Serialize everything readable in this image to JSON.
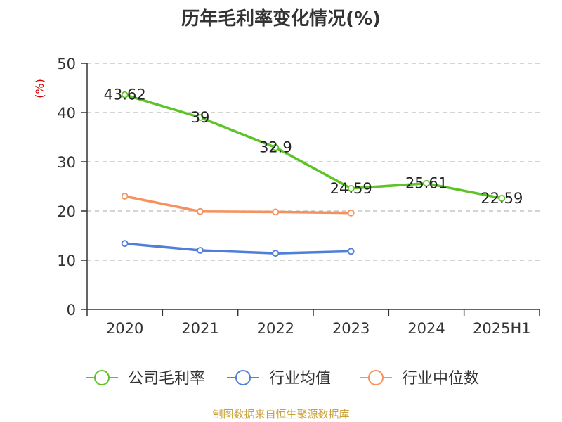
{
  "title": "历年毛利率变化情况(%)",
  "source_note": "制图数据来自恒生聚源数据库",
  "colors": {
    "company": "#5ec229",
    "industry_avg": "#4f7fd8",
    "industry_median": "#f5915c",
    "axis": "#333333",
    "grid": "#bbbbbb",
    "unit_label": "#d40000"
  },
  "chart_data": {
    "type": "line",
    "title": "历年毛利率变化情况(%)",
    "ylabel": "(%)",
    "ylim": [
      0,
      50
    ],
    "yticks": [
      0,
      10,
      20,
      30,
      40,
      50
    ],
    "grid": true,
    "legend_position": "bottom",
    "categories": [
      "2020",
      "2021",
      "2022",
      "2023",
      "2024",
      "2025H1"
    ],
    "series": [
      {
        "name": "公司毛利率",
        "color": "#5ec229",
        "values": [
          43.62,
          39,
          32.9,
          24.59,
          25.61,
          22.59
        ],
        "labels": [
          "43.62",
          "39",
          "32.9",
          "24.59",
          "25.61",
          "22.59"
        ],
        "show_labels": true
      },
      {
        "name": "行业均值",
        "color": "#4f7fd8",
        "values": [
          13.4,
          12.0,
          11.4,
          11.8,
          null,
          null
        ],
        "show_labels": false
      },
      {
        "name": "行业中位数",
        "color": "#f5915c",
        "values": [
          23.0,
          19.9,
          19.8,
          19.6,
          null,
          null
        ],
        "show_labels": false
      }
    ]
  }
}
